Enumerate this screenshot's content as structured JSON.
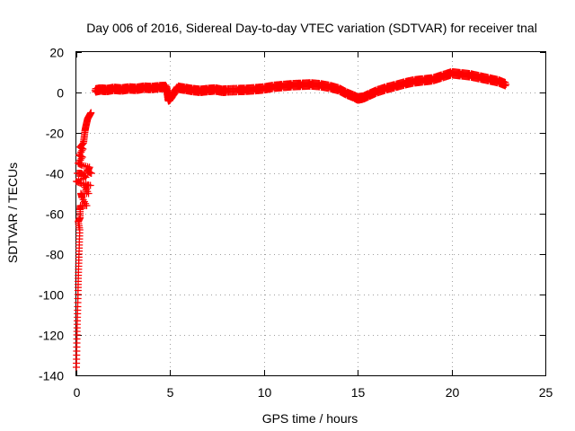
{
  "chart_data": {
    "type": "scatter",
    "title": "Day 006 of 2016, Sidereal Day-to-day VTEC variation (SDTVAR) for receiver tnal",
    "xlabel": "GPS time / hours",
    "ylabel": "SDTVAR / TECUs",
    "xlim": [
      0,
      25
    ],
    "ylim": [
      -140,
      20
    ],
    "x_ticks": [
      0,
      5,
      10,
      15,
      20,
      25
    ],
    "y_ticks": [
      -140,
      -120,
      -100,
      -80,
      -60,
      -40,
      -20,
      0,
      20
    ],
    "x_tick_labels": [
      "0",
      "5",
      "10",
      "15",
      "20",
      "25"
    ],
    "y_tick_labels": [
      "-140",
      "-120",
      "-100",
      "-80",
      "-60",
      "-40",
      "-20",
      "0",
      "20"
    ],
    "grid": true,
    "marker": "+",
    "marker_color": "#ff0000",
    "series": [
      {
        "points": [
          [
            0.0,
            -136
          ],
          [
            0.02,
            -128
          ],
          [
            0.03,
            -120
          ],
          [
            0.05,
            -113
          ],
          [
            0.07,
            -106
          ],
          [
            0.09,
            -98
          ],
          [
            0.1,
            -92
          ],
          [
            0.12,
            -86
          ],
          [
            0.14,
            -80
          ],
          [
            0.16,
            -74
          ],
          [
            0.18,
            -68
          ],
          [
            0.2,
            -62
          ],
          [
            0.22,
            -56
          ],
          [
            0.24,
            -50
          ],
          [
            0.26,
            -45
          ],
          [
            0.28,
            -40
          ],
          [
            0.3,
            -36
          ],
          [
            0.32,
            -32
          ],
          [
            0.35,
            -28
          ],
          [
            0.38,
            -25
          ],
          [
            0.42,
            -22
          ],
          [
            0.46,
            -19
          ],
          [
            0.5,
            -17
          ],
          [
            0.55,
            -15
          ],
          [
            0.6,
            -13
          ],
          [
            0.66,
            -12
          ],
          [
            0.72,
            -11
          ],
          [
            0.78,
            -10
          ],
          [
            0.0,
            -44
          ],
          [
            0.05,
            -40
          ],
          [
            0.1,
            -35
          ],
          [
            0.15,
            -31
          ],
          [
            0.2,
            -27
          ],
          [
            0.1,
            -64
          ],
          [
            0.2,
            -58
          ],
          [
            0.3,
            -52
          ],
          [
            0.4,
            -46
          ],
          [
            0.5,
            -42
          ],
          [
            0.6,
            -39
          ],
          [
            0.7,
            -37
          ],
          [
            0.8,
            -40
          ],
          [
            0.75,
            -46
          ],
          [
            0.65,
            -50
          ],
          [
            0.55,
            -56
          ],
          [
            1.0,
            1
          ],
          [
            1.3,
            1.5
          ],
          [
            1.6,
            1.2
          ],
          [
            2.0,
            1.8
          ],
          [
            2.4,
            1.5
          ],
          [
            2.8,
            2.0
          ],
          [
            3.2,
            1.8
          ],
          [
            3.6,
            2.4
          ],
          [
            4.0,
            2.2
          ],
          [
            4.4,
            2.6
          ],
          [
            4.8,
            2.8
          ],
          [
            4.9,
            -3.5
          ],
          [
            5.0,
            -3
          ],
          [
            5.4,
            2.4
          ],
          [
            5.8,
            1.8
          ],
          [
            6.2,
            1.2
          ],
          [
            6.6,
            0.8
          ],
          [
            7.0,
            1.2
          ],
          [
            7.4,
            1.5
          ],
          [
            7.8,
            0.8
          ],
          [
            8.0,
            1.0
          ],
          [
            8.6,
            1.2
          ],
          [
            9.0,
            1.3
          ],
          [
            9.5,
            1.6
          ],
          [
            10.0,
            2.0
          ],
          [
            10.5,
            2.8
          ],
          [
            11.0,
            3.2
          ],
          [
            11.5,
            3.6
          ],
          [
            12.0,
            3.8
          ],
          [
            12.5,
            4.0
          ],
          [
            13.0,
            3.6
          ],
          [
            13.5,
            2.8
          ],
          [
            14.0,
            1.5
          ],
          [
            14.4,
            -0.5
          ],
          [
            14.8,
            -2.0
          ],
          [
            15.0,
            -3.0
          ],
          [
            15.3,
            -2.5
          ],
          [
            15.6,
            -1.2
          ],
          [
            16.0,
            0.5
          ],
          [
            16.5,
            2.0
          ],
          [
            17.0,
            3.2
          ],
          [
            17.5,
            4.5
          ],
          [
            18.0,
            5.5
          ],
          [
            18.5,
            6.0
          ],
          [
            19.0,
            6.5
          ],
          [
            19.5,
            8.0
          ],
          [
            20.0,
            9.5
          ],
          [
            20.5,
            9.0
          ],
          [
            21.0,
            8.5
          ],
          [
            21.5,
            7.5
          ],
          [
            22.0,
            6.5
          ],
          [
            22.5,
            5.5
          ],
          [
            22.9,
            4.0
          ]
        ]
      }
    ]
  }
}
